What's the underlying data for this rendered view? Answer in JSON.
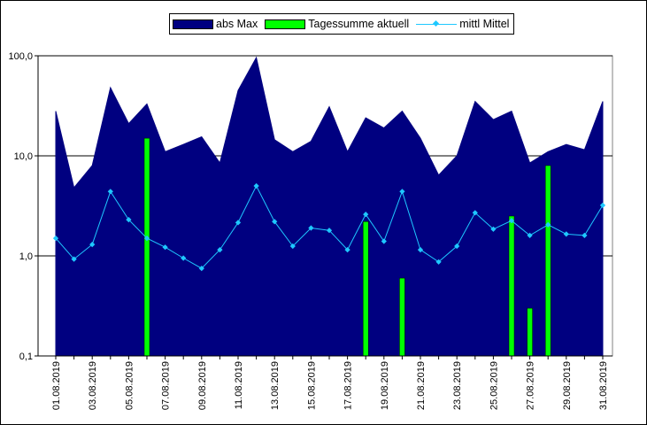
{
  "chart_data": {
    "type": "bar",
    "y_scale": "log",
    "ylim": [
      0.1,
      100
    ],
    "y_ticks": [
      "0,1",
      "1,0",
      "10,0",
      "100,0"
    ],
    "grid": "horizontal major lines",
    "legend_position": "top",
    "dates": [
      "01.08.2019",
      "02.08.2019",
      "03.08.2019",
      "04.08.2019",
      "05.08.2019",
      "06.08.2019",
      "07.08.2019",
      "08.08.2019",
      "09.08.2019",
      "10.08.2019",
      "11.08.2019",
      "12.08.2019",
      "13.08.2019",
      "14.08.2019",
      "15.08.2019",
      "16.08.2019",
      "17.08.2019",
      "18.08.2019",
      "19.08.2019",
      "20.08.2019",
      "21.08.2019",
      "22.08.2019",
      "23.08.2019",
      "24.08.2019",
      "25.08.2019",
      "26.08.2019",
      "27.08.2019",
      "28.08.2019",
      "29.08.2019",
      "30.08.2019",
      "31.08.2019"
    ],
    "tick_labels": [
      "01.08.2019",
      "03.08.2019",
      "05.08.2019",
      "07.08.2019",
      "09.08.2019",
      "11.08.2019",
      "13.08.2019",
      "15.08.2019",
      "17.08.2019",
      "19.08.2019",
      "21.08.2019",
      "23.08.2019",
      "25.08.2019",
      "27.08.2019",
      "29.08.2019",
      "31.08.2019"
    ],
    "series": [
      {
        "name": "abs Max",
        "kind": "area",
        "color": "#000080",
        "values": [
          28,
          4.8,
          8,
          48,
          21,
          33,
          11,
          13,
          15.5,
          8.5,
          45,
          96,
          14.5,
          11,
          14,
          31,
          11,
          24,
          19,
          28,
          15,
          6.4,
          10,
          35,
          23,
          28,
          8.5,
          11,
          13,
          11.5,
          35
        ]
      },
      {
        "name": "Tagessumme aktuell",
        "kind": "bar",
        "color": "#00ff00",
        "values": [
          null,
          null,
          null,
          null,
          null,
          15,
          null,
          null,
          null,
          null,
          null,
          null,
          null,
          null,
          null,
          null,
          null,
          2.2,
          null,
          0.6,
          null,
          null,
          null,
          null,
          null,
          2.5,
          0.3,
          8,
          null,
          null,
          null
        ]
      },
      {
        "name": "mittl Mittel",
        "kind": "line",
        "color": "#1ec8ff",
        "values": [
          1.5,
          0.93,
          1.3,
          4.4,
          2.3,
          1.5,
          1.22,
          0.95,
          0.75,
          1.15,
          2.15,
          5,
          2.2,
          1.25,
          1.9,
          1.8,
          1.15,
          2.6,
          1.4,
          4.4,
          1.15,
          0.87,
          1.25,
          2.7,
          1.85,
          2.25,
          1.6,
          2.05,
          1.65,
          1.6,
          3.2
        ]
      }
    ]
  },
  "colors": {
    "plot_background": "#ffffff",
    "gridline": "#000000",
    "area": "#000080",
    "bar": "#00ff00",
    "line": "#1ec8ff"
  }
}
